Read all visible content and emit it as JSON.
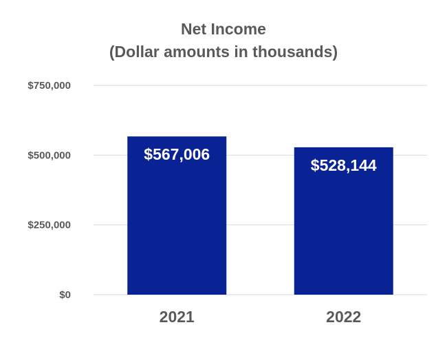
{
  "chart_data": {
    "type": "bar",
    "title": "Net Income",
    "subtitle": "(Dollar amounts in thousands)",
    "categories": [
      "2021",
      "2022"
    ],
    "values": [
      567006,
      528144
    ],
    "data_labels": [
      "$567,006",
      "$528,144"
    ],
    "ylim": [
      0,
      750000
    ],
    "yticks": [
      0,
      250000,
      500000,
      750000
    ],
    "ytick_labels": [
      "$0",
      "$250,000",
      "$500,000",
      "$750,000"
    ],
    "grid": true,
    "legend": "none",
    "bar_color": "#0a2394"
  }
}
